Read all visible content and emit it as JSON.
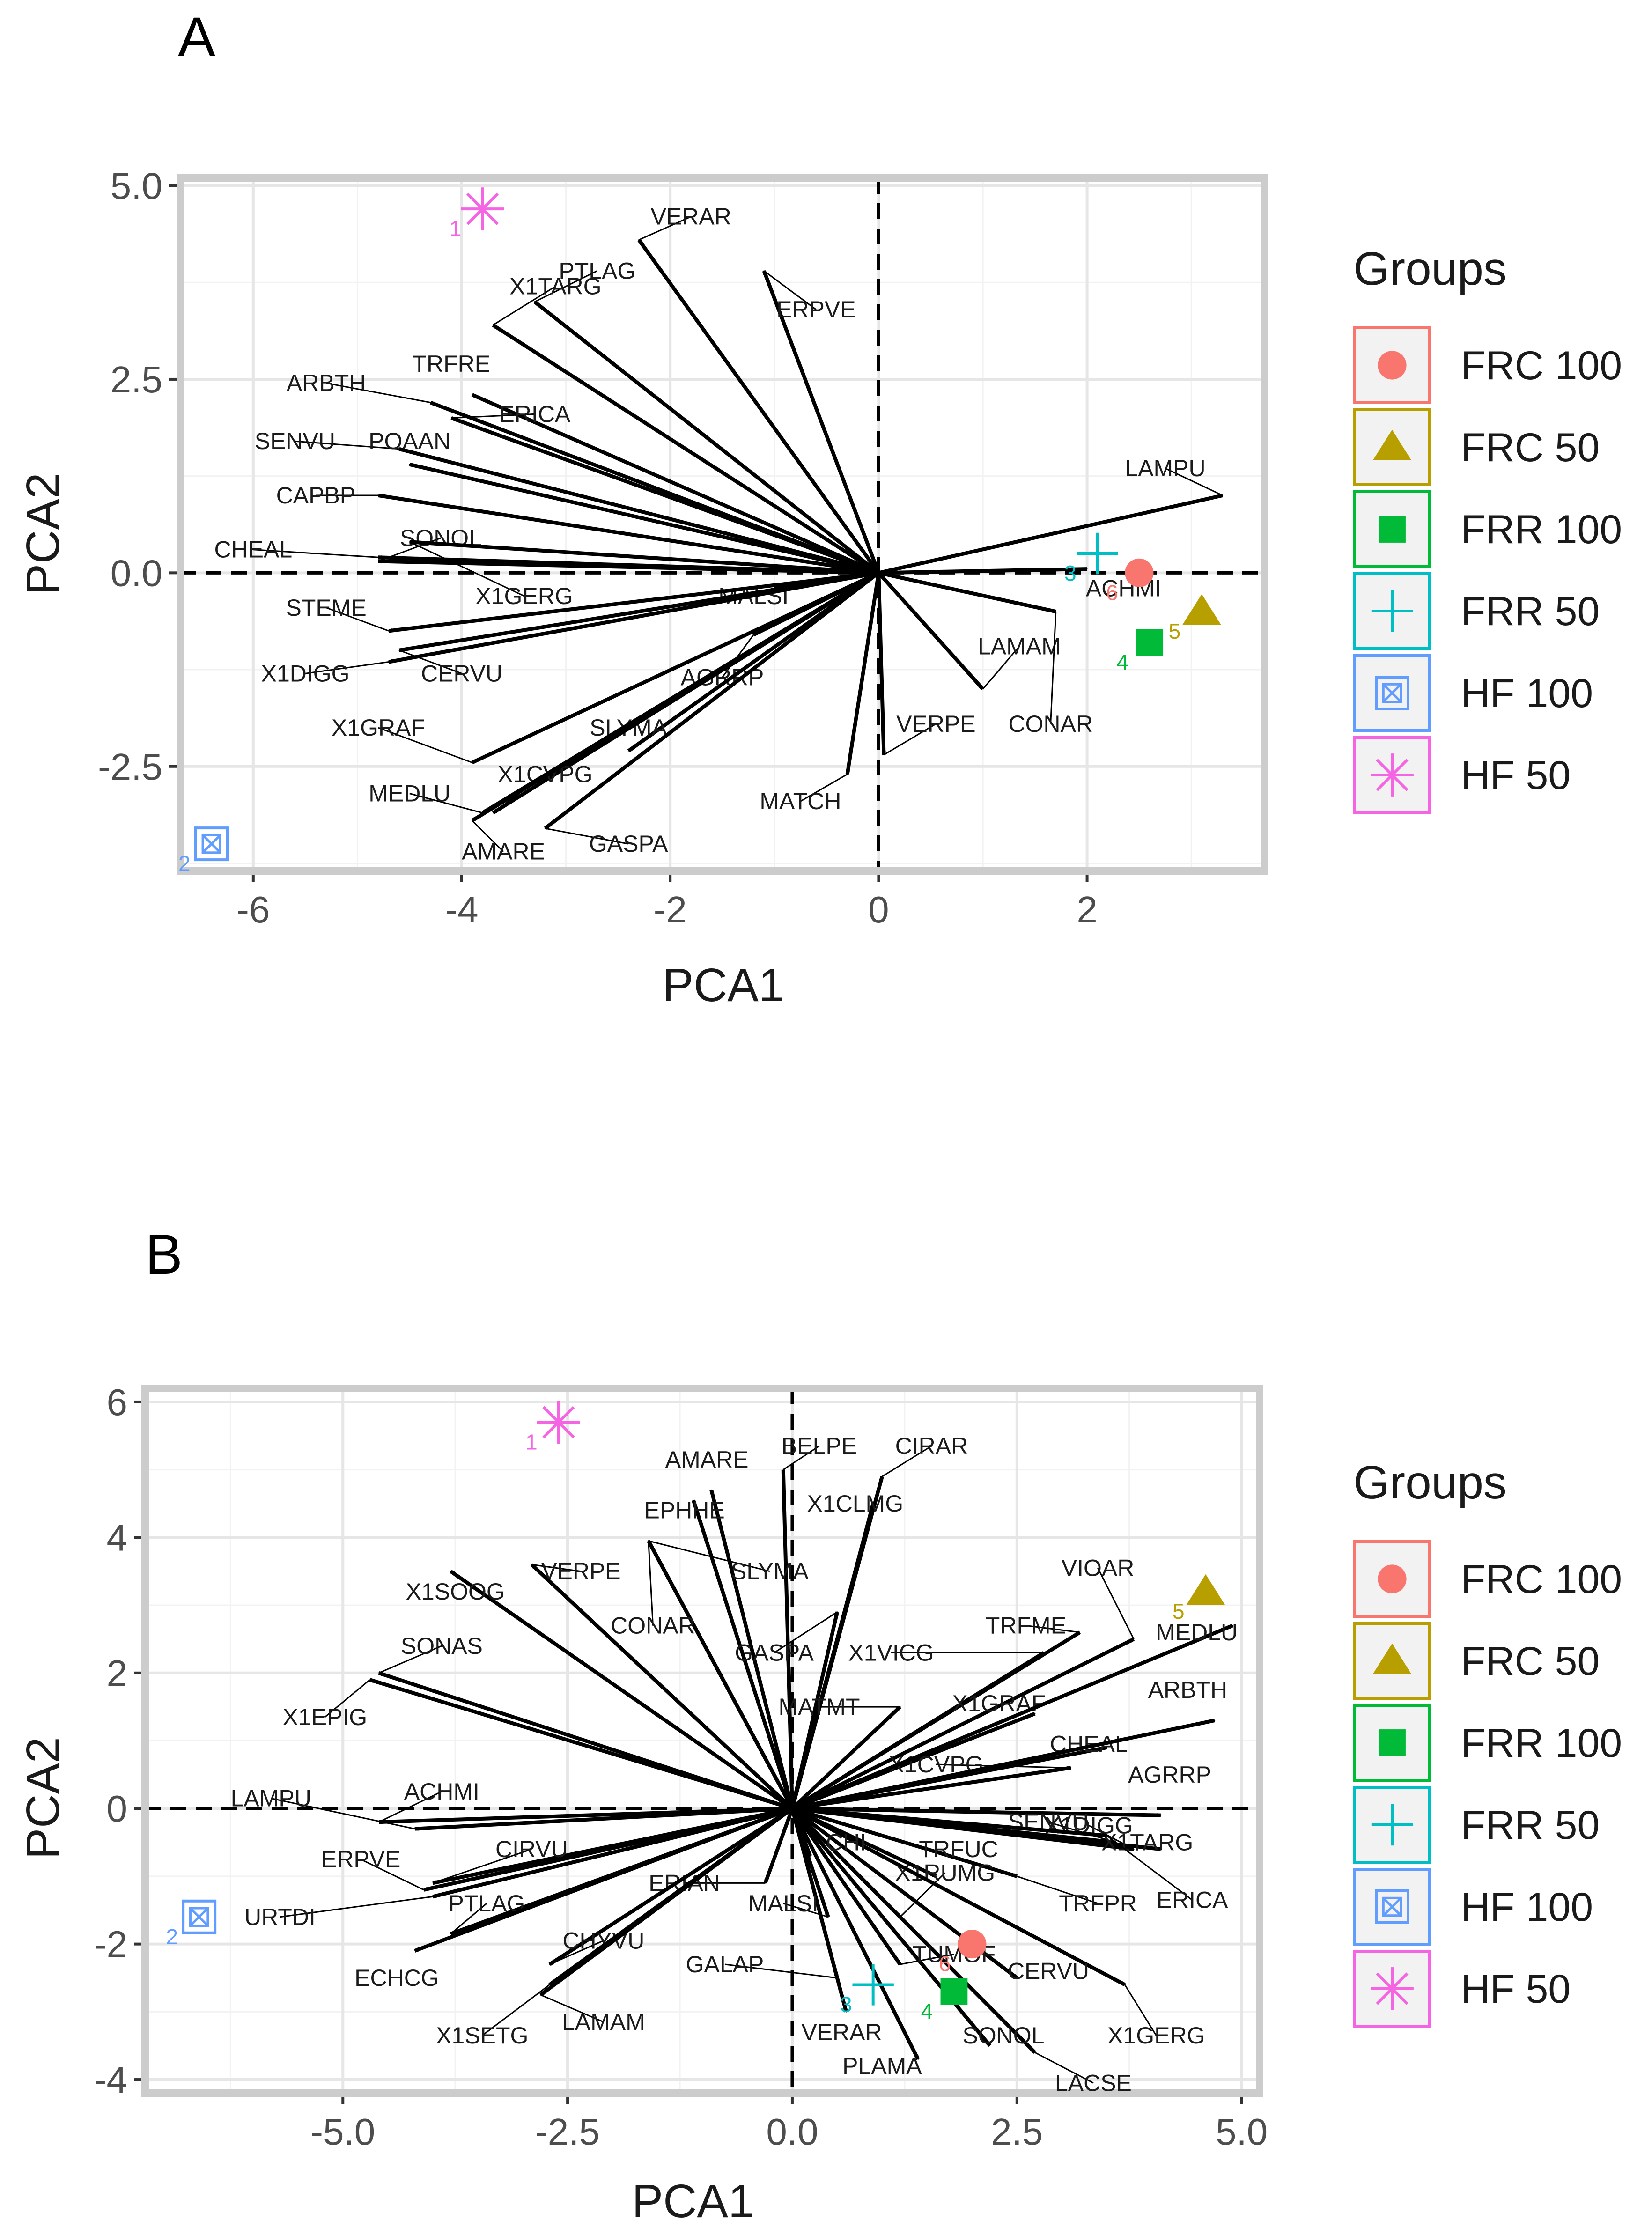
{
  "panels": [
    {
      "letter": "A",
      "xlabel": "PCA1",
      "ylabel": "PCA2",
      "xticks": [
        "-6",
        "-4",
        "-2",
        "0",
        "2"
      ],
      "yticks": [
        "5.0",
        "2.5",
        "0.0",
        "-2.5"
      ],
      "legend_title": "Groups"
    },
    {
      "letter": "B",
      "xlabel": "PCA1",
      "ylabel": "PCA2",
      "xticks": [
        "-5.0",
        "-2.5",
        "0.0",
        "2.5",
        "5.0"
      ],
      "yticks": [
        "6",
        "4",
        "2",
        "0",
        "-2",
        "-4"
      ],
      "legend_title": "Groups"
    }
  ],
  "legend": [
    {
      "label": "FRC 100",
      "color": "#F8766D",
      "shape": "circle"
    },
    {
      "label": "FRC 50",
      "color": "#B79F00",
      "shape": "triangle"
    },
    {
      "label": "FRR 100",
      "color": "#00BA38",
      "shape": "square"
    },
    {
      "label": "FRR 50",
      "color": "#00BFC4",
      "shape": "plus"
    },
    {
      "label": "HF 100",
      "color": "#619CFF",
      "shape": "boxed-x"
    },
    {
      "label": "HF 50",
      "color": "#F564E3",
      "shape": "asterisk"
    }
  ],
  "chart_data": [
    {
      "type": "scatter",
      "title": "A",
      "xlabel": "PCA1",
      "ylabel": "PCA2",
      "xlim": [
        -6.7,
        3.7
      ],
      "ylim": [
        -3.85,
        5.1
      ],
      "xticks": [
        -6,
        -4,
        -2,
        0,
        2
      ],
      "yticks": [
        5,
        2.5,
        0,
        -2.5
      ],
      "points": [
        {
          "id": "1",
          "group": "HF 50",
          "x": -3.8,
          "y": 4.7
        },
        {
          "id": "2",
          "group": "HF 100",
          "x": -6.4,
          "y": -3.5
        },
        {
          "id": "3",
          "group": "FRR 50",
          "x": 2.1,
          "y": 0.25
        },
        {
          "id": "4",
          "group": "FRR 100",
          "x": 2.6,
          "y": -0.9
        },
        {
          "id": "5",
          "group": "FRC 50",
          "x": 3.1,
          "y": -0.5
        },
        {
          "id": "6",
          "group": "FRC 100",
          "x": 2.5,
          "y": 0.0
        }
      ],
      "vectors": [
        {
          "name": "VERAR",
          "x": -2.3,
          "y": 4.3,
          "lx": -1.8,
          "ly": 4.6
        },
        {
          "name": "PTLAG",
          "x": -3.3,
          "y": 3.5,
          "lx": -2.7,
          "ly": 3.9
        },
        {
          "name": "X1TARG",
          "x": -3.7,
          "y": 3.2,
          "lx": -3.1,
          "ly": 3.7
        },
        {
          "name": "ERPVE",
          "x": -1.1,
          "y": 3.9,
          "lx": -0.6,
          "ly": 3.4
        },
        {
          "name": "TRFRE",
          "x": -3.9,
          "y": 2.3,
          "lx": -4.1,
          "ly": 2.7
        },
        {
          "name": "ARBTH",
          "x": -4.3,
          "y": 2.2,
          "lx": -5.3,
          "ly": 2.45
        },
        {
          "name": "ERICA",
          "x": -4.1,
          "y": 2.0,
          "lx": -3.3,
          "ly": 2.05
        },
        {
          "name": "SENVU",
          "x": -4.6,
          "y": 1.6,
          "lx": -5.6,
          "ly": 1.7
        },
        {
          "name": "POAAN",
          "x": -4.5,
          "y": 1.4,
          "lx": -4.5,
          "ly": 1.7
        },
        {
          "name": "CAPBP",
          "x": -4.8,
          "y": 1.0,
          "lx": -5.4,
          "ly": 1.0
        },
        {
          "name": "CHEAL",
          "x": -4.8,
          "y": 0.2,
          "lx": -6.0,
          "ly": 0.3
        },
        {
          "name": "SONOL",
          "x": -4.8,
          "y": 0.15,
          "lx": -4.2,
          "ly": 0.45
        },
        {
          "name": "X1GERG",
          "x": -4.5,
          "y": 0.4,
          "lx": -3.4,
          "ly": -0.3
        },
        {
          "name": "MALSI",
          "x": -1.0,
          "y": -0.2,
          "lx": -1.2,
          "ly": -0.3
        },
        {
          "name": "STEME",
          "x": -4.7,
          "y": -0.75,
          "lx": -5.3,
          "ly": -0.45
        },
        {
          "name": "X1DIGG",
          "x": -4.7,
          "y": -1.15,
          "lx": -5.5,
          "ly": -1.3
        },
        {
          "name": "CERVU",
          "x": -4.6,
          "y": -1.0,
          "lx": -4.0,
          "ly": -1.3
        },
        {
          "name": "AGRRP",
          "x": -1.2,
          "y": -0.8,
          "lx": -1.5,
          "ly": -1.35
        },
        {
          "name": "X1GRAF",
          "x": -3.9,
          "y": -2.45,
          "lx": -4.8,
          "ly": -2.0
        },
        {
          "name": "SLYMA",
          "x": -2.4,
          "y": -2.3,
          "lx": -2.4,
          "ly": -2.0
        },
        {
          "name": "X1CVPG",
          "x": -3.7,
          "y": -3.1,
          "lx": -3.2,
          "ly": -2.6
        },
        {
          "name": "MEDLU",
          "x": -3.8,
          "y": -3.1,
          "lx": -4.5,
          "ly": -2.85
        },
        {
          "name": "GASPA",
          "x": -3.2,
          "y": -3.3,
          "lx": -2.4,
          "ly": -3.5
        },
        {
          "name": "AMARE",
          "x": -3.9,
          "y": -3.2,
          "lx": -3.6,
          "ly": -3.6
        },
        {
          "name": "MATCH",
          "x": -0.3,
          "y": -2.6,
          "lx": -0.75,
          "ly": -2.95
        },
        {
          "name": "VERPE",
          "x": 0.05,
          "y": -2.35,
          "lx": 0.55,
          "ly": -1.95
        },
        {
          "name": "LAMAM",
          "x": 1.0,
          "y": -1.5,
          "lx": 1.35,
          "ly": -0.95
        },
        {
          "name": "CONAR",
          "x": 1.7,
          "y": -0.5,
          "lx": 1.65,
          "ly": -1.95
        },
        {
          "name": "LAMPU",
          "x": 3.3,
          "y": 1.0,
          "lx": 2.75,
          "ly": 1.35
        },
        {
          "name": "ACHMI",
          "x": 2.0,
          "y": 0.05,
          "lx": 2.35,
          "ly": -0.2
        }
      ]
    },
    {
      "type": "scatter",
      "title": "B",
      "xlabel": "PCA1",
      "ylabel": "PCA2",
      "xlim": [
        -7.2,
        5.2
      ],
      "ylim": [
        -4.2,
        6.2
      ],
      "xticks": [
        -5.0,
        -2.5,
        0.0,
        2.5,
        5.0
      ],
      "yticks": [
        6,
        4,
        2,
        0,
        -2,
        -4
      ],
      "points": [
        {
          "id": "1",
          "group": "HF 50",
          "x": -2.6,
          "y": 5.7
        },
        {
          "id": "2",
          "group": "HF 100",
          "x": -6.6,
          "y": -1.6
        },
        {
          "id": "3",
          "group": "FRR 50",
          "x": 0.9,
          "y": -2.6
        },
        {
          "id": "4",
          "group": "FRR 100",
          "x": 1.8,
          "y": -2.7
        },
        {
          "id": "5",
          "group": "FRC 50",
          "x": 4.6,
          "y": 3.2
        },
        {
          "id": "6",
          "group": "FRC 100",
          "x": 2.0,
          "y": -2.0
        }
      ],
      "vectors": [
        {
          "name": "AMARE",
          "x": -0.9,
          "y": 4.7,
          "lx": -0.95,
          "ly": 5.15
        },
        {
          "name": "BELPE",
          "x": -0.1,
          "y": 5.0,
          "lx": 0.3,
          "ly": 5.35
        },
        {
          "name": "CIRAR",
          "x": 1.0,
          "y": 4.9,
          "lx": 1.55,
          "ly": 5.35
        },
        {
          "name": "X1CLMG",
          "x": 0.9,
          "y": 4.5,
          "lx": 0.7,
          "ly": 4.5
        },
        {
          "name": "EPHHE",
          "x": -1.1,
          "y": 4.55,
          "lx": -1.2,
          "ly": 4.4
        },
        {
          "name": "SLYMA",
          "x": -1.6,
          "y": 3.95,
          "lx": -0.25,
          "ly": 3.5
        },
        {
          "name": "X1SOOG",
          "x": -3.8,
          "y": 3.5,
          "lx": -3.75,
          "ly": 3.2
        },
        {
          "name": "VERPE",
          "x": -2.9,
          "y": 3.6,
          "lx": -2.35,
          "ly": 3.5
        },
        {
          "name": "CONAR",
          "x": -1.6,
          "y": 3.95,
          "lx": -1.55,
          "ly": 2.7
        },
        {
          "name": "GASPA",
          "x": 0.5,
          "y": 2.9,
          "lx": -0.2,
          "ly": 2.3
        },
        {
          "name": "X1VICG",
          "x": 2.8,
          "y": 2.3,
          "lx": 1.1,
          "ly": 2.3
        },
        {
          "name": "TRFME",
          "x": 3.2,
          "y": 2.6,
          "lx": 2.6,
          "ly": 2.7
        },
        {
          "name": "VIOAR",
          "x": 3.8,
          "y": 2.5,
          "lx": 3.4,
          "ly": 3.55
        },
        {
          "name": "MATMT",
          "x": 1.2,
          "y": 1.5,
          "lx": 0.3,
          "ly": 1.5
        },
        {
          "name": "X1GRAF",
          "x": 2.7,
          "y": 1.4,
          "lx": 2.3,
          "ly": 1.55
        },
        {
          "name": "SONAS",
          "x": -4.6,
          "y": 2.0,
          "lx": -3.9,
          "ly": 2.4
        },
        {
          "name": "X1EPIG",
          "x": -4.7,
          "y": 1.9,
          "lx": -5.2,
          "ly": 1.35
        },
        {
          "name": "CHEAL",
          "x": 3.5,
          "y": 0.9,
          "lx": 3.3,
          "ly": 0.95
        },
        {
          "name": "X1CVPG",
          "x": 3.1,
          "y": 0.6,
          "lx": 1.6,
          "ly": 0.65
        },
        {
          "name": "AGRRP",
          "x": 4.1,
          "y": -0.1,
          "lx": 4.2,
          "ly": 0.5
        },
        {
          "name": "ARBTH",
          "x": 4.7,
          "y": 1.3,
          "lx": 4.4,
          "ly": 1.75
        },
        {
          "name": "MEDLU",
          "x": 4.9,
          "y": 2.7,
          "lx": 4.5,
          "ly": 2.6
        },
        {
          "name": "SENVU",
          "x": 3.6,
          "y": -0.5,
          "lx": 2.85,
          "ly": -0.2
        },
        {
          "name": "X1DIGG",
          "x": 3.8,
          "y": -0.6,
          "lx": 3.3,
          "ly": -0.25
        },
        {
          "name": "X1TARG",
          "x": 4.1,
          "y": -0.6,
          "lx": 3.95,
          "ly": -0.5
        },
        {
          "name": "ERICA",
          "x": 3.5,
          "y": -0.4,
          "lx": 4.45,
          "ly": -1.35
        },
        {
          "name": "TRFPR",
          "x": 2.5,
          "y": -1.0,
          "lx": 3.4,
          "ly": -1.4
        },
        {
          "name": "TRFUC",
          "x": 1.6,
          "y": -1.0,
          "lx": 1.85,
          "ly": -0.6
        },
        {
          "name": "X1RUMG",
          "x": 1.2,
          "y": -1.6,
          "lx": 1.7,
          "ly": -0.95
        },
        {
          "name": "X1GERG",
          "x": 3.7,
          "y": -2.6,
          "lx": 4.05,
          "ly": -3.35
        },
        {
          "name": "CERVU",
          "x": 2.5,
          "y": -2.5,
          "lx": 2.85,
          "ly": -2.4
        },
        {
          "name": "LACSE",
          "x": 2.7,
          "y": -3.6,
          "lx": 3.35,
          "ly": -4.05
        },
        {
          "name": "SONOL",
          "x": 2.2,
          "y": -3.5,
          "lx": 2.35,
          "ly": -3.35
        },
        {
          "name": "TUMOF",
          "x": 1.2,
          "y": -2.3,
          "lx": 1.8,
          "ly": -2.15
        },
        {
          "name": "PLAMA",
          "x": 1.4,
          "y": -3.7,
          "lx": 1.0,
          "ly": -3.8
        },
        {
          "name": "VERAR",
          "x": 0.6,
          "y": -3.0,
          "lx": 0.55,
          "ly": -3.3
        },
        {
          "name": "GALAP",
          "x": 0.5,
          "y": -2.5,
          "lx": -0.75,
          "ly": -2.3
        },
        {
          "name": "MALSI",
          "x": 0.4,
          "y": -1.6,
          "lx": -0.1,
          "ly": -1.4
        },
        {
          "name": "ERIAN",
          "x": -0.3,
          "y": -1.1,
          "lx": -1.2,
          "ly": -1.1
        },
        {
          "name": "CHI",
          "x": 0.2,
          "y": -0.7,
          "lx": 0.6,
          "ly": -0.5
        },
        {
          "name": "ACHMI",
          "x": -4.6,
          "y": -0.2,
          "lx": -3.9,
          "ly": 0.25
        },
        {
          "name": "LAMPU",
          "x": -4.2,
          "y": -0.3,
          "lx": -5.8,
          "ly": 0.15
        },
        {
          "name": "CIRVU",
          "x": -4.0,
          "y": -1.1,
          "lx": -2.9,
          "ly": -0.6
        },
        {
          "name": "ERPVE",
          "x": -4.1,
          "y": -1.2,
          "lx": -4.8,
          "ly": -0.75
        },
        {
          "name": "URTDI",
          "x": -4.0,
          "y": -1.3,
          "lx": -5.7,
          "ly": -1.6
        },
        {
          "name": "PTLAG",
          "x": -3.8,
          "y": -1.85,
          "lx": -3.4,
          "ly": -1.4
        },
        {
          "name": "CHYVU",
          "x": -2.7,
          "y": -2.3,
          "lx": -2.1,
          "ly": -1.95
        },
        {
          "name": "ECHCG",
          "x": -4.2,
          "y": -2.1,
          "lx": -4.4,
          "ly": -2.5
        },
        {
          "name": "LAMAM",
          "x": -2.8,
          "y": -2.75,
          "lx": -2.1,
          "ly": -3.15
        },
        {
          "name": "X1SETG",
          "x": -2.7,
          "y": -2.6,
          "lx": -3.45,
          "ly": -3.35
        }
      ]
    }
  ]
}
